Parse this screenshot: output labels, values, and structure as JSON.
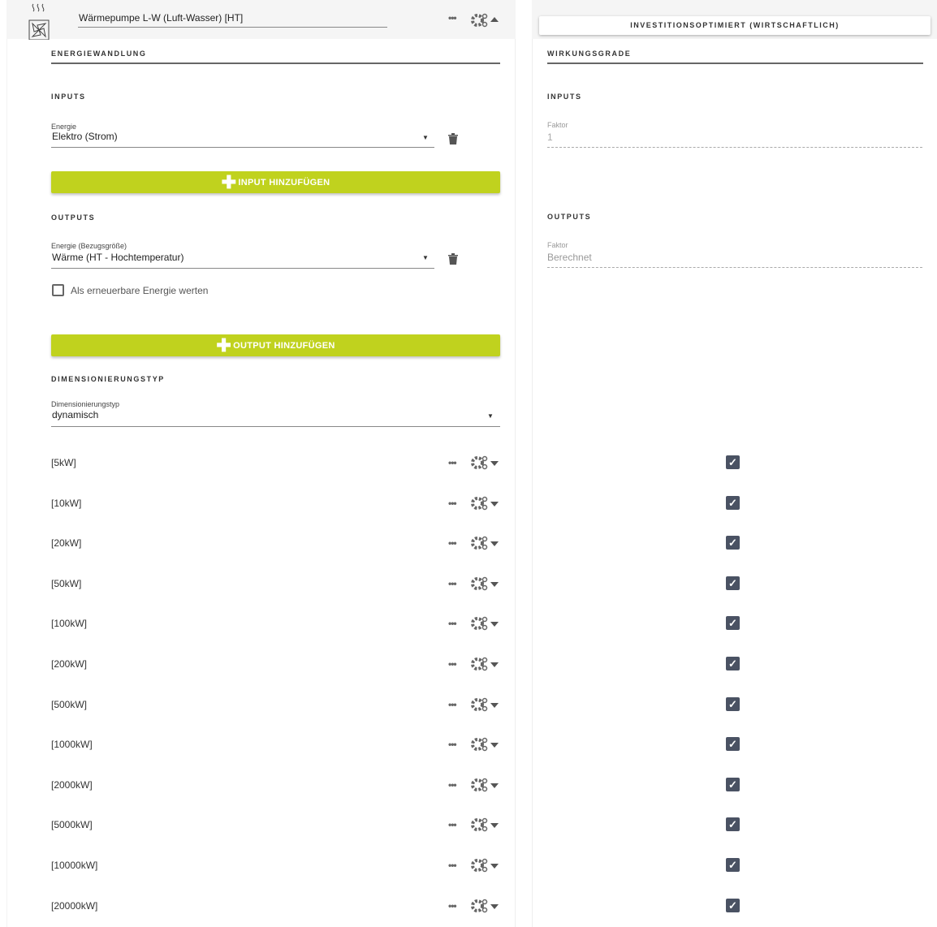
{
  "header": {
    "title": "Wärmepumpe L-W (Luft-Wasser) [HT]",
    "mode_button": "INVESTITIONSOPTIMIERT (WIRTSCHAFTLICH)"
  },
  "left": {
    "section_title": "ENERGIEWANDLUNG",
    "inputs_title": "INPUTS",
    "input_label": "Energie",
    "input_value": "Elektro (Strom)",
    "add_input": "INPUT HINZUFÜGEN",
    "outputs_title": "OUTPUTS",
    "output_label": "Energie (Bezugsgröße)",
    "output_value": "Wärme (HT - Hochtemperatur)",
    "renewable_label": "Als erneuerbare Energie werten",
    "renewable_checked": false,
    "add_output": "OUTPUT HINZUFÜGEN",
    "dim_title": "DIMENSIONIERUNGSTYP",
    "dim_label": "Dimensionierungstyp",
    "dim_value": "dynamisch"
  },
  "right": {
    "section_title": "WIRKUNGSGRADE",
    "inputs_title": "INPUTS",
    "input_factor_label": "Faktor",
    "input_factor_value": "1",
    "outputs_title": "OUTPUTS",
    "output_factor_label": "Faktor",
    "output_factor_value": "Berechnet"
  },
  "sizes": [
    {
      "label": "[5kW]",
      "checked": true
    },
    {
      "label": "[10kW]",
      "checked": true
    },
    {
      "label": "[20kW]",
      "checked": true
    },
    {
      "label": "[50kW]",
      "checked": true
    },
    {
      "label": "[100kW]",
      "checked": true
    },
    {
      "label": "[200kW]",
      "checked": true
    },
    {
      "label": "[500kW]",
      "checked": true
    },
    {
      "label": "[1000kW]",
      "checked": true
    },
    {
      "label": "[2000kW]",
      "checked": true
    },
    {
      "label": "[5000kW]",
      "checked": true
    },
    {
      "label": "[10000kW]",
      "checked": true
    },
    {
      "label": "[20000kW]",
      "checked": true
    }
  ],
  "colors": {
    "accent": "#c0d21e",
    "checkbox": "#4a5263"
  }
}
